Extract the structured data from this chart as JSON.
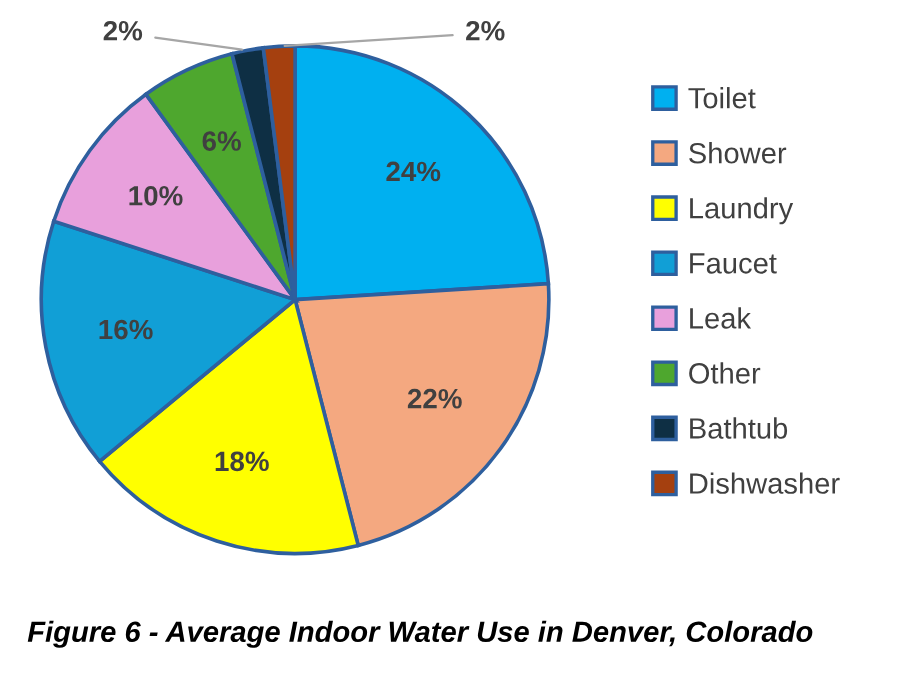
{
  "chart_data": {
    "type": "pie",
    "title": "Figure 6 - Average Indoor Water Use in Denver, Colorado",
    "categories": [
      "Toilet",
      "Shower",
      "Laundry",
      "Faucet",
      "Leak",
      "Other",
      "Bathtub",
      "Dishwasher"
    ],
    "values": [
      24,
      22,
      18,
      16,
      10,
      6,
      2,
      2
    ],
    "value_labels": [
      "24%",
      "22%",
      "18%",
      "16%",
      "10%",
      "6%",
      "2%",
      "2%"
    ],
    "colors": [
      "#00b0f0",
      "#f4a880",
      "#ffff00",
      "#119fd6",
      "#e8a0dc",
      "#4ea72e",
      "#0e2f44",
      "#a5400f"
    ],
    "legend": "right"
  }
}
